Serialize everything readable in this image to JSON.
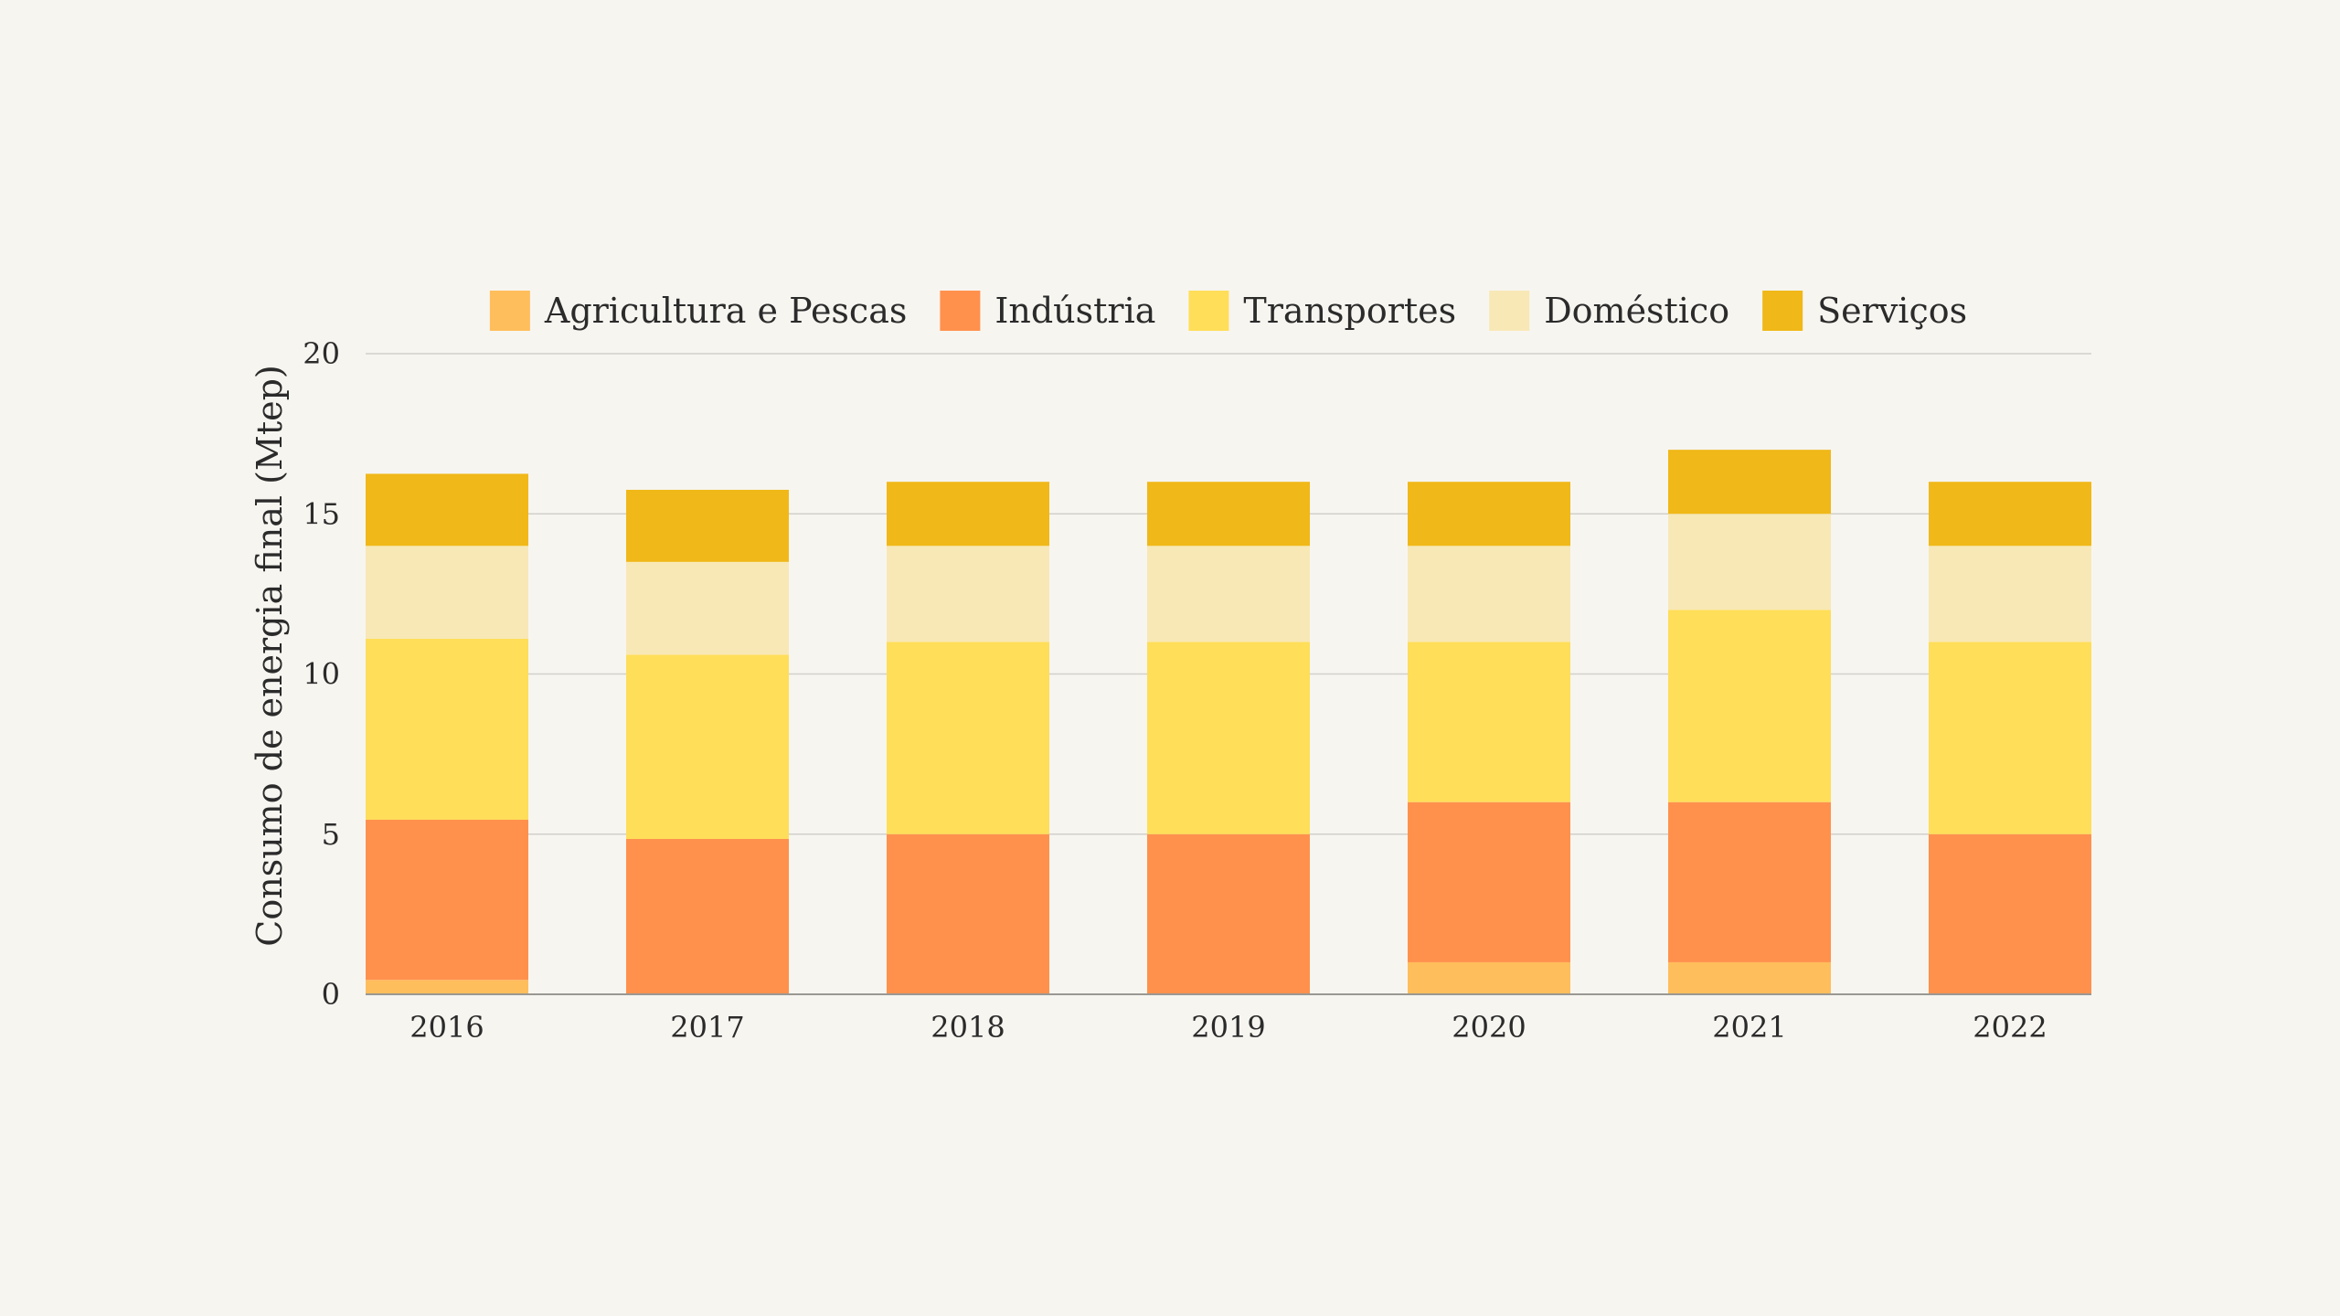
{
  "chart_data": {
    "type": "bar",
    "stacked": true,
    "ylabel": "Consumo de energia final (Mtep)",
    "xlabel": "",
    "ylim": [
      0,
      20
    ],
    "yticks": [
      "0",
      "5",
      "10",
      "15",
      "20"
    ],
    "grid": true,
    "legend_position": "top",
    "categories": [
      "2016",
      "2017",
      "2018",
      "2019",
      "2020",
      "2021",
      "2022"
    ],
    "series": [
      {
        "name": "Agricultura e Pescas",
        "color": "#ffbe5c",
        "values": [
          0.45,
          0,
          0,
          0,
          1,
          1,
          0
        ]
      },
      {
        "name": "Indústria",
        "color": "#ff914d",
        "values": [
          5,
          4.85,
          5,
          5,
          5,
          5,
          5
        ]
      },
      {
        "name": "Transportes",
        "color": "#ffde59",
        "values": [
          5.65,
          5.75,
          6,
          6,
          5,
          6,
          6
        ]
      },
      {
        "name": "Doméstico",
        "color": "#f8e8b6",
        "values": [
          2.9,
          2.9,
          3,
          3,
          3,
          3,
          3
        ]
      },
      {
        "name": "Serviços",
        "color": "#f0b818",
        "values": [
          2.25,
          2.25,
          2,
          2,
          2,
          2,
          2
        ]
      }
    ]
  }
}
